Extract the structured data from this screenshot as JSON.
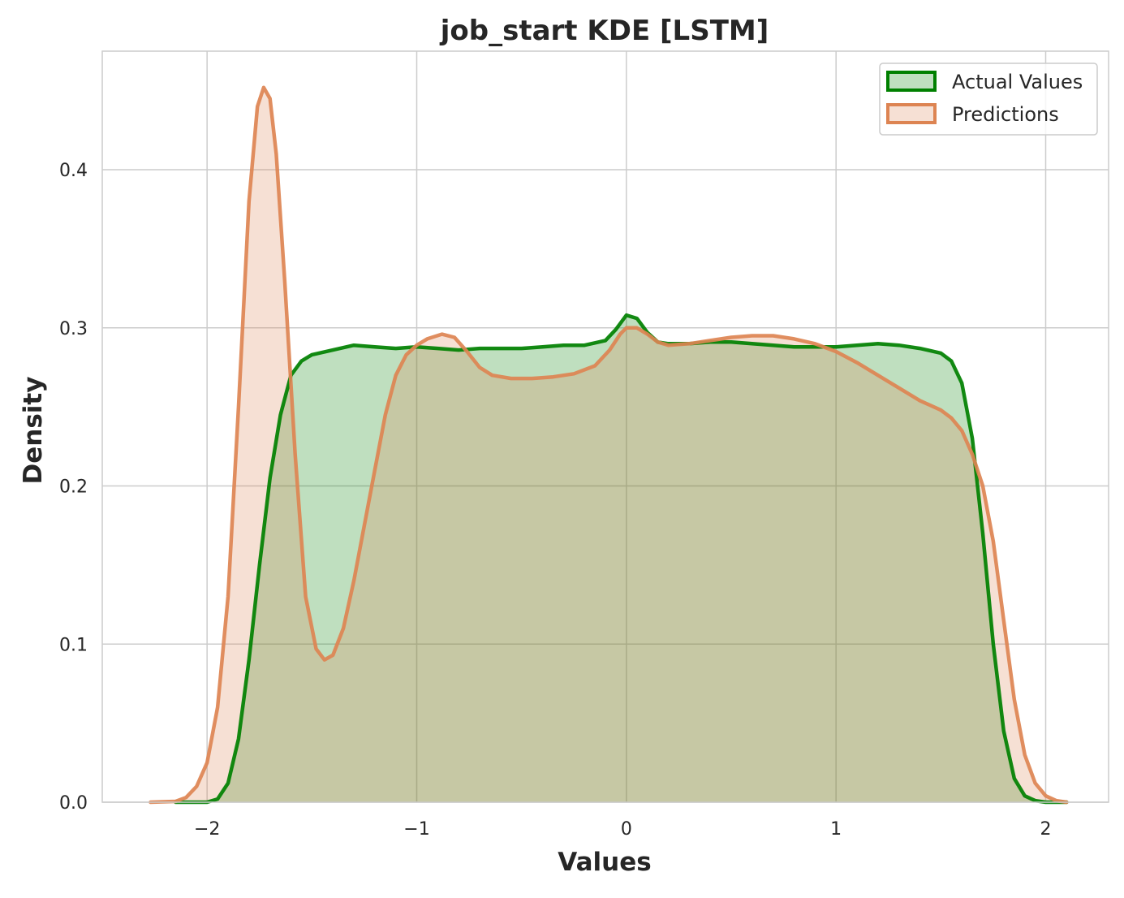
{
  "chart_data": {
    "type": "area",
    "title": "job_start KDE [LSTM]",
    "xlabel": "Values",
    "ylabel": "Density",
    "xlim": [
      -2.5,
      2.3
    ],
    "ylim": [
      0,
      0.475
    ],
    "x_ticks": [
      {
        "value": -2,
        "label": "−2"
      },
      {
        "value": -1,
        "label": "−1"
      },
      {
        "value": 0,
        "label": "0"
      },
      {
        "value": 1,
        "label": "1"
      },
      {
        "value": 2,
        "label": "2"
      }
    ],
    "y_ticks": [
      {
        "value": 0.0,
        "label": "0.0"
      },
      {
        "value": 0.1,
        "label": "0.1"
      },
      {
        "value": 0.2,
        "label": "0.2"
      },
      {
        "value": 0.3,
        "label": "0.3"
      },
      {
        "value": 0.4,
        "label": "0.4"
      }
    ],
    "grid": true,
    "legend_position": "top-right",
    "series": [
      {
        "name": "Actual Values",
        "color": "#008000",
        "fill_color": "#008000",
        "fill_opacity": 0.25,
        "points": [
          [
            -2.15,
            0.0
          ],
          [
            -2.0,
            0.0
          ],
          [
            -1.95,
            0.002
          ],
          [
            -1.9,
            0.012
          ],
          [
            -1.85,
            0.04
          ],
          [
            -1.8,
            0.09
          ],
          [
            -1.75,
            0.15
          ],
          [
            -1.7,
            0.205
          ],
          [
            -1.65,
            0.245
          ],
          [
            -1.6,
            0.27
          ],
          [
            -1.55,
            0.279
          ],
          [
            -1.5,
            0.283
          ],
          [
            -1.4,
            0.286
          ],
          [
            -1.3,
            0.289
          ],
          [
            -1.2,
            0.288
          ],
          [
            -1.1,
            0.287
          ],
          [
            -1.0,
            0.288
          ],
          [
            -0.9,
            0.287
          ],
          [
            -0.8,
            0.286
          ],
          [
            -0.7,
            0.287
          ],
          [
            -0.6,
            0.287
          ],
          [
            -0.5,
            0.287
          ],
          [
            -0.4,
            0.288
          ],
          [
            -0.3,
            0.289
          ],
          [
            -0.2,
            0.289
          ],
          [
            -0.1,
            0.292
          ],
          [
            -0.05,
            0.299
          ],
          [
            0.0,
            0.308
          ],
          [
            0.05,
            0.306
          ],
          [
            0.1,
            0.297
          ],
          [
            0.15,
            0.291
          ],
          [
            0.2,
            0.29
          ],
          [
            0.3,
            0.29
          ],
          [
            0.4,
            0.291
          ],
          [
            0.5,
            0.291
          ],
          [
            0.6,
            0.29
          ],
          [
            0.7,
            0.289
          ],
          [
            0.8,
            0.288
          ],
          [
            0.9,
            0.288
          ],
          [
            1.0,
            0.288
          ],
          [
            1.1,
            0.289
          ],
          [
            1.2,
            0.29
          ],
          [
            1.3,
            0.289
          ],
          [
            1.4,
            0.287
          ],
          [
            1.5,
            0.284
          ],
          [
            1.55,
            0.279
          ],
          [
            1.6,
            0.265
          ],
          [
            1.65,
            0.23
          ],
          [
            1.7,
            0.17
          ],
          [
            1.75,
            0.1
          ],
          [
            1.8,
            0.045
          ],
          [
            1.85,
            0.015
          ],
          [
            1.9,
            0.004
          ],
          [
            1.95,
            0.001
          ],
          [
            2.0,
            0.0
          ],
          [
            2.1,
            0.0
          ]
        ]
      },
      {
        "name": "Predictions",
        "color": "#dd8452",
        "fill_color": "#dd8452",
        "fill_opacity": 0.25,
        "points": [
          [
            -2.27,
            0.0
          ],
          [
            -2.15,
            0.0005
          ],
          [
            -2.1,
            0.003
          ],
          [
            -2.05,
            0.01
          ],
          [
            -2.0,
            0.025
          ],
          [
            -1.95,
            0.06
          ],
          [
            -1.9,
            0.13
          ],
          [
            -1.85,
            0.25
          ],
          [
            -1.8,
            0.38
          ],
          [
            -1.76,
            0.44
          ],
          [
            -1.73,
            0.452
          ],
          [
            -1.7,
            0.445
          ],
          [
            -1.67,
            0.41
          ],
          [
            -1.63,
            0.33
          ],
          [
            -1.58,
            0.22
          ],
          [
            -1.53,
            0.13
          ],
          [
            -1.48,
            0.097
          ],
          [
            -1.44,
            0.09
          ],
          [
            -1.4,
            0.093
          ],
          [
            -1.35,
            0.11
          ],
          [
            -1.3,
            0.14
          ],
          [
            -1.25,
            0.175
          ],
          [
            -1.2,
            0.21
          ],
          [
            -1.15,
            0.245
          ],
          [
            -1.1,
            0.27
          ],
          [
            -1.05,
            0.283
          ],
          [
            -1.0,
            0.289
          ],
          [
            -0.95,
            0.293
          ],
          [
            -0.88,
            0.296
          ],
          [
            -0.82,
            0.294
          ],
          [
            -0.76,
            0.285
          ],
          [
            -0.7,
            0.275
          ],
          [
            -0.64,
            0.27
          ],
          [
            -0.55,
            0.268
          ],
          [
            -0.45,
            0.268
          ],
          [
            -0.35,
            0.269
          ],
          [
            -0.25,
            0.271
          ],
          [
            -0.15,
            0.276
          ],
          [
            -0.08,
            0.286
          ],
          [
            -0.03,
            0.296
          ],
          [
            0.0,
            0.3
          ],
          [
            0.05,
            0.3
          ],
          [
            0.1,
            0.296
          ],
          [
            0.15,
            0.291
          ],
          [
            0.2,
            0.289
          ],
          [
            0.3,
            0.29
          ],
          [
            0.4,
            0.292
          ],
          [
            0.5,
            0.294
          ],
          [
            0.6,
            0.295
          ],
          [
            0.7,
            0.295
          ],
          [
            0.8,
            0.293
          ],
          [
            0.9,
            0.29
          ],
          [
            1.0,
            0.285
          ],
          [
            1.1,
            0.278
          ],
          [
            1.2,
            0.27
          ],
          [
            1.3,
            0.262
          ],
          [
            1.4,
            0.254
          ],
          [
            1.5,
            0.248
          ],
          [
            1.55,
            0.243
          ],
          [
            1.6,
            0.235
          ],
          [
            1.65,
            0.22
          ],
          [
            1.7,
            0.2
          ],
          [
            1.75,
            0.165
          ],
          [
            1.8,
            0.115
          ],
          [
            1.85,
            0.065
          ],
          [
            1.9,
            0.03
          ],
          [
            1.95,
            0.012
          ],
          [
            2.0,
            0.004
          ],
          [
            2.05,
            0.001
          ],
          [
            2.1,
            0.0
          ]
        ]
      }
    ]
  }
}
